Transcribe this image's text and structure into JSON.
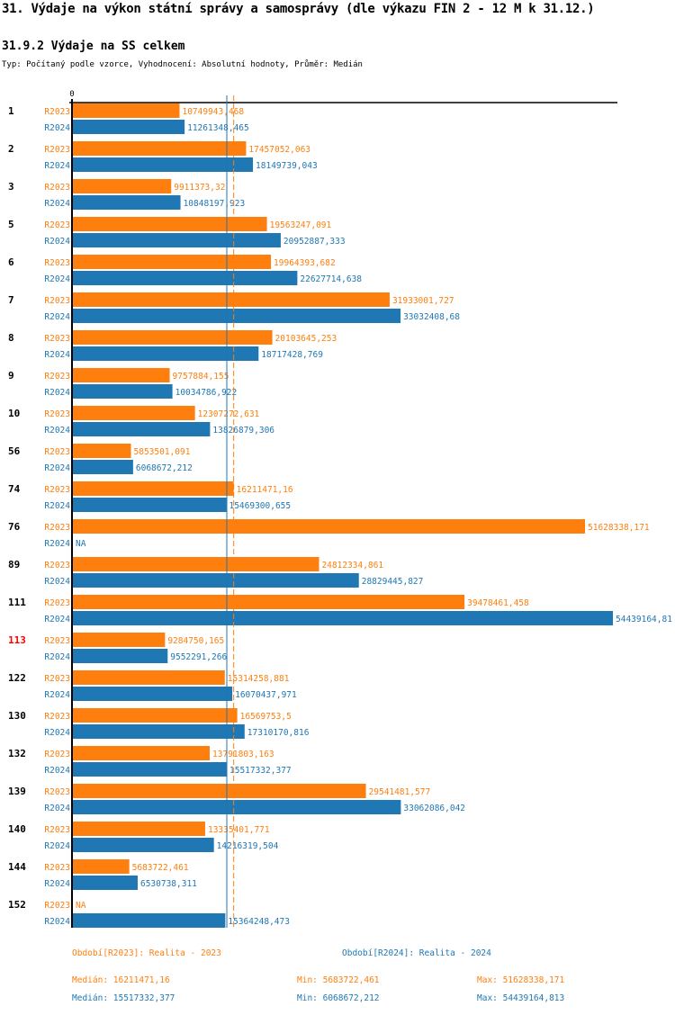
{
  "page": {
    "title": "31. Výdaje na výkon státní správy a samosprávy (dle výkazu FIN 2 - 12 M k 31.12.)",
    "subtitle": "31.9.2 Výdaje na SS celkem",
    "meta": "Typ: Počítaný podle vzorce, Vyhodnocení: Absolutní hodnoty, Průměr: Medián"
  },
  "colors": {
    "r2023": "#ff7f0e",
    "r2024": "#1f77b4",
    "highlight": "#ff0000",
    "axis": "#000000"
  },
  "chart_data": {
    "type": "bar",
    "orientation": "horizontal",
    "title": "31.9.2 Výdaje na SS celkem",
    "xlabel": "",
    "ylabel": "",
    "x_tick_labels": [
      "0"
    ],
    "xlim": [
      0,
      54439164.813
    ],
    "grid": false,
    "legend_position": "bottom",
    "categories": [
      "1",
      "2",
      "3",
      "5",
      "6",
      "7",
      "8",
      "9",
      "10",
      "56",
      "74",
      "76",
      "89",
      "111",
      "113",
      "122",
      "130",
      "132",
      "139",
      "140",
      "144",
      "152"
    ],
    "highlighted_category": "113",
    "series": [
      {
        "name": "R2023",
        "legend": "Období[R2023]: Realita - 2023",
        "values": [
          10749943.468,
          17457052.063,
          9911373.32,
          19563247.091,
          19964393.682,
          31933001.727,
          20103645.253,
          9757884.155,
          12307272.631,
          5853501.091,
          16211471.16,
          51628338.171,
          24812334.861,
          39478461.458,
          9284750.165,
          15314258.881,
          16569753.5,
          13791803.163,
          29541481.577,
          13335401.771,
          5683722.461,
          null
        ],
        "labels": [
          "10749943,468",
          "17457052,063",
          "9911373,32",
          "19563247,091",
          "19964393,682",
          "31933001,727",
          "20103645,253",
          "9757884,155",
          "12307272,631",
          "5853501,091",
          "16211471,16",
          "51628338,171",
          "24812334,861",
          "39478461,458",
          "9284750,165",
          "15314258,881",
          "16569753,5",
          "13791803,163",
          "29541481,577",
          "13335401,771",
          "5683722,461",
          "NA"
        ],
        "median": 16211471.16,
        "median_line_style": "dashed",
        "stats": {
          "median_label": "Medián: 16211471,16",
          "min_label": "Min: 5683722,461",
          "max_label": "Max: 51628338,171"
        }
      },
      {
        "name": "R2024",
        "legend": "Období[R2024]: Realita - 2024",
        "values": [
          11261348.465,
          18149739.043,
          10848197.923,
          20952887.333,
          22627714.638,
          33032408.68,
          18717428.769,
          10034786.922,
          13826879.306,
          6068672.212,
          15469300.655,
          null,
          28829445.827,
          54439164.813,
          9552291.266,
          16070437.971,
          17310170.816,
          15517332.377,
          33062086.042,
          14216319.504,
          6530738.311,
          15364248.473
        ],
        "labels": [
          "11261348,465",
          "18149739,043",
          "10848197,923",
          "20952887,333",
          "22627714,638",
          "33032408,68",
          "18717428,769",
          "10034786,922",
          "13826879,306",
          "6068672,212",
          "15469300,655",
          "NA",
          "28829445,827",
          "54439164,81",
          "9552291,266",
          "16070437,971",
          "17310170,816",
          "15517332,377",
          "33062086,042",
          "14216319,504",
          "6530738,311",
          "15364248,473"
        ],
        "median": 15517332.377,
        "median_line_style": "solid",
        "stats": {
          "median_label": "Medián: 15517332,377",
          "min_label": "Min: 6068672,212",
          "max_label": "Max: 54439164,813"
        }
      }
    ]
  }
}
